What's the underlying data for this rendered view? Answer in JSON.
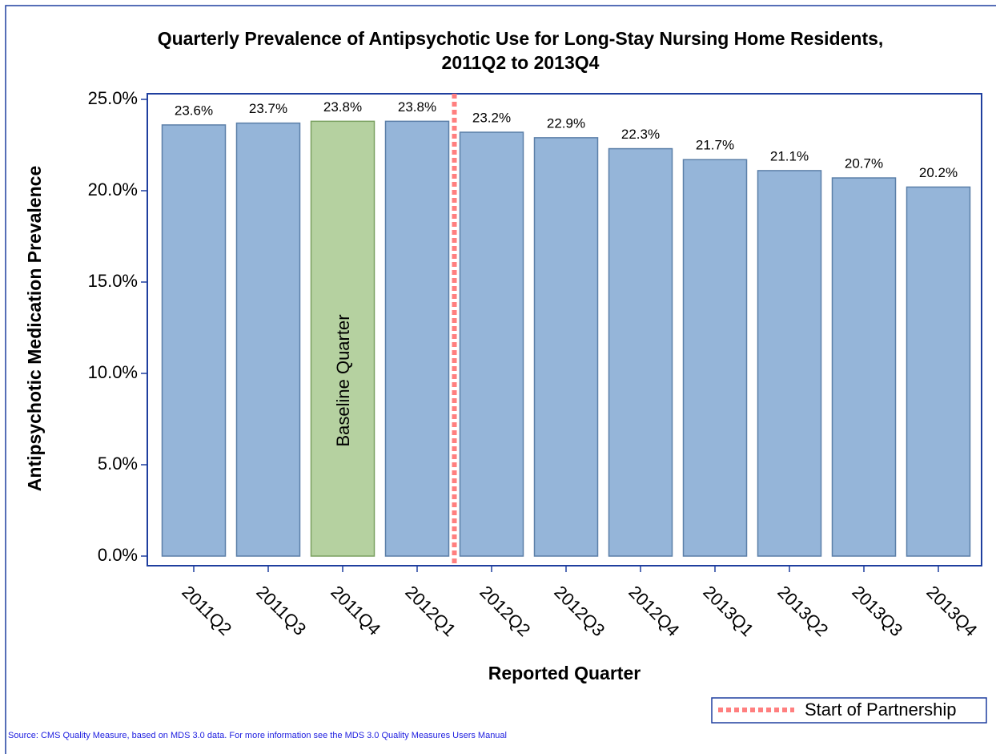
{
  "chart_data": {
    "type": "bar",
    "title": [
      "Quarterly Prevalence of Antipsychotic Use for Long-Stay Nursing Home Residents,",
      "2011Q2 to 2013Q4"
    ],
    "x_label": "Reported Quarter",
    "y_label": "Antipsychotic Medication Prevalence",
    "categories": [
      "2011Q2",
      "2011Q3",
      "2011Q4",
      "2012Q1",
      "2012Q2",
      "2012Q3",
      "2012Q4",
      "2013Q1",
      "2013Q2",
      "2013Q3",
      "2013Q4"
    ],
    "values": [
      23.6,
      23.7,
      23.8,
      23.8,
      23.2,
      22.9,
      22.3,
      21.7,
      21.1,
      20.7,
      20.2
    ],
    "value_labels": [
      "23.6%",
      "23.7%",
      "23.8%",
      "23.8%",
      "23.2%",
      "22.9%",
      "22.3%",
      "21.7%",
      "21.1%",
      "20.7%",
      "20.2%"
    ],
    "colors": [
      "#95b5d9",
      "#95b5d9",
      "#b5d1a0",
      "#95b5d9",
      "#95b5d9",
      "#95b5d9",
      "#95b5d9",
      "#95b5d9",
      "#95b5d9",
      "#95b5d9",
      "#95b5d9"
    ],
    "annotation": "Baseline Quarter",
    "reference_line": {
      "name": "Start of Partnership",
      "color": "#ff7f7f"
    },
    "ylim": [
      0,
      25
    ],
    "yticks": [
      {
        "value": 0,
        "label": "0.0%"
      },
      {
        "value": 5,
        "label": "5.0%"
      },
      {
        "value": 10,
        "label": "10.0%"
      },
      {
        "value": 15,
        "label": "15.0%"
      },
      {
        "value": 20,
        "label": "20.0%"
      },
      {
        "value": 25,
        "label": "25.0%"
      }
    ],
    "legend_position": "bottom-right",
    "footnote": "Source: CMS Quality Measure, based on MDS 3.0 data. For more information see the MDS 3.0 Quality Measures Users Manual"
  }
}
